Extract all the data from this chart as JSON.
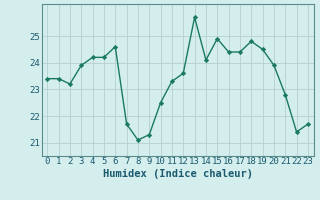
{
  "x": [
    0,
    1,
    2,
    3,
    4,
    5,
    6,
    7,
    8,
    9,
    10,
    11,
    12,
    13,
    14,
    15,
    16,
    17,
    18,
    19,
    20,
    21,
    22,
    23
  ],
  "y": [
    23.4,
    23.4,
    23.2,
    23.9,
    24.2,
    24.2,
    24.6,
    21.7,
    21.1,
    21.3,
    22.5,
    23.3,
    23.6,
    25.7,
    24.1,
    24.9,
    24.4,
    24.4,
    24.8,
    24.5,
    23.9,
    22.8,
    21.4,
    21.7
  ],
  "line_color": "#1a7a5e",
  "marker": "D",
  "marker_size": 2.2,
  "line_width": 1.0,
  "xlabel": "Humidex (Indice chaleur)",
  "xlabel_fontsize": 7.5,
  "ylim": [
    20.5,
    26.2
  ],
  "xlim": [
    -0.5,
    23.5
  ],
  "yticks": [
    21,
    22,
    23,
    24,
    25
  ],
  "xticks": [
    0,
    1,
    2,
    3,
    4,
    5,
    6,
    7,
    8,
    9,
    10,
    11,
    12,
    13,
    14,
    15,
    16,
    17,
    18,
    19,
    20,
    21,
    22,
    23
  ],
  "background_color": "#d4eeee",
  "grid_color": "#b8cece",
  "tick_fontsize": 6.5,
  "tick_color": "#1a5a6e",
  "spine_color": "#5a8a8a"
}
